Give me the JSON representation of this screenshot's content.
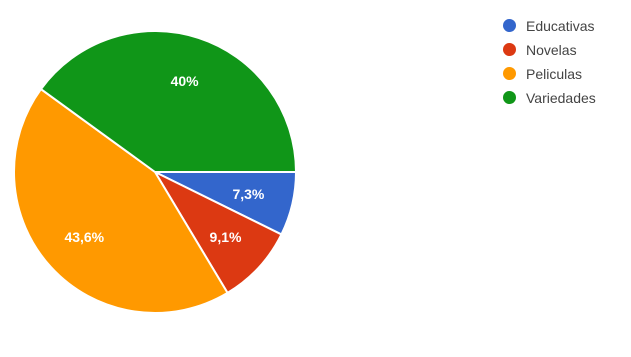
{
  "chart_data": {
    "type": "pie",
    "slices": [
      {
        "label": "Educativas",
        "value": 7.3,
        "display": "7,3%",
        "color": "#3366cc"
      },
      {
        "label": "Novelas",
        "value": 9.1,
        "display": "9,1%",
        "color": "#dc3912"
      },
      {
        "label": "Peliculas",
        "value": 43.6,
        "display": "43,6%",
        "color": "#ff9900"
      },
      {
        "label": "Variedades",
        "value": 40,
        "display": "40%",
        "color": "#109618"
      }
    ],
    "legend_position": "top-right",
    "start_angle_deg": 90,
    "direction": "clockwise"
  }
}
